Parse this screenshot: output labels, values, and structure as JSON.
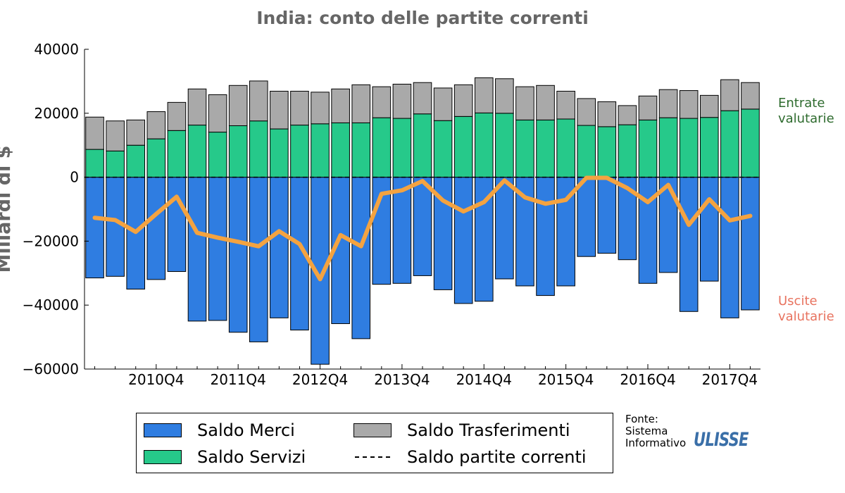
{
  "chart_data": {
    "type": "bar",
    "title": "India: conto delle partite correnti",
    "ylabel": "Miliardi di $",
    "ylim": [
      -60000,
      40000
    ],
    "yticks": [
      40000,
      20000,
      0,
      -20000,
      -40000,
      -60000
    ],
    "ytick_labels": [
      "40000",
      "20000",
      "0",
      "−20000",
      "−40000",
      "−60000"
    ],
    "xtick_labels": [
      "2010Q4",
      "2011Q4",
      "2012Q4",
      "2013Q4",
      "2014Q4",
      "2015Q4",
      "2016Q4",
      "2017Q4"
    ],
    "xtick_positions": [
      3,
      7,
      11,
      15,
      19,
      23,
      27,
      31
    ],
    "annotations": [
      {
        "text": [
          "Entrate",
          "valutarie"
        ],
        "color": "#2e6b2e"
      },
      {
        "text": [
          "Uscite",
          "valutarie"
        ],
        "color": "#e8735f"
      }
    ],
    "series": [
      {
        "name": "Saldo Merci",
        "color": "#2f7de1",
        "values": [
          -31500,
          -31000,
          -35000,
          -32000,
          -29500,
          -45000,
          -44800,
          -48500,
          -51500,
          -44000,
          -47800,
          -58500,
          -45800,
          -50500,
          -33500,
          -33200,
          -30800,
          -35200,
          -39500,
          -38800,
          -31800,
          -34000,
          -37000,
          -34000,
          -24800,
          -23800,
          -25800,
          -33200,
          -29800,
          -42000,
          -32500,
          -44000,
          -41500
        ]
      },
      {
        "name": "Saldo Servizi",
        "color": "#26c98a",
        "values": [
          8700,
          8200,
          10000,
          12000,
          14600,
          16300,
          14100,
          16100,
          17600,
          15100,
          16300,
          16700,
          17000,
          17000,
          18600,
          18400,
          19800,
          17700,
          19000,
          20100,
          20000,
          17900,
          17900,
          18200,
          16200,
          15800,
          16400,
          17900,
          18600,
          18400,
          18700,
          20800,
          21300
        ]
      },
      {
        "name": "Saldo Trasferimenti",
        "color": "#a9a9a9",
        "values": [
          10100,
          9400,
          7900,
          8500,
          8800,
          11300,
          11700,
          12600,
          12500,
          11800,
          10600,
          9900,
          10600,
          11900,
          9700,
          10700,
          9800,
          10200,
          9900,
          11000,
          10800,
          10400,
          10800,
          8700,
          8400,
          7800,
          6000,
          7500,
          8800,
          8700,
          6900,
          9700,
          8300
        ]
      },
      {
        "name": "Saldo partite correnti",
        "color": "#f4a340",
        "values": [
          -12700,
          -13400,
          -17100,
          -11500,
          -6100,
          -17400,
          -18900,
          -20200,
          -21600,
          -16900,
          -20900,
          -31900,
          -18100,
          -21600,
          -5200,
          -4100,
          -1200,
          -7300,
          -10700,
          -7800,
          -1000,
          -6300,
          -8300,
          -7100,
          -200,
          -200,
          -3400,
          -7800,
          -2400,
          -14900,
          -6900,
          -13500,
          -12100
        ]
      }
    ],
    "legend": {
      "placement": "bottom",
      "entries": [
        "Saldo Merci",
        "Saldo Servizi",
        "Saldo Trasferimenti",
        "Saldo partite correnti"
      ]
    }
  },
  "source": {
    "lines": [
      "Fonte:",
      "Sistema",
      "Informativo"
    ],
    "logo_text": "ULISSE"
  }
}
